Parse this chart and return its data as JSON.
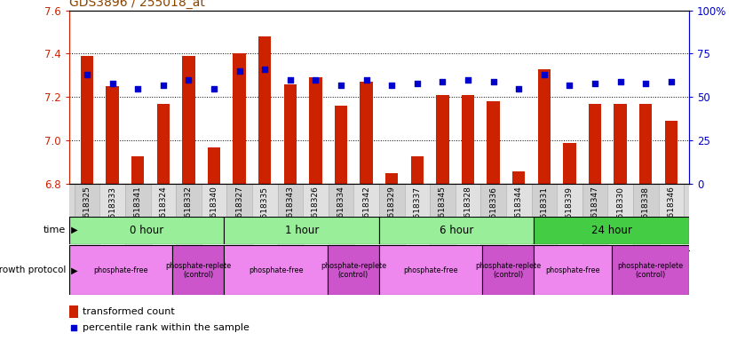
{
  "title": "GDS3896 / 255018_at",
  "samples": [
    "GSM618325",
    "GSM618333",
    "GSM618341",
    "GSM618324",
    "GSM618332",
    "GSM618340",
    "GSM618327",
    "GSM618335",
    "GSM618343",
    "GSM618326",
    "GSM618334",
    "GSM618342",
    "GSM618329",
    "GSM618337",
    "GSM618345",
    "GSM618328",
    "GSM618336",
    "GSM618344",
    "GSM618331",
    "GSM618339",
    "GSM618347",
    "GSM618330",
    "GSM618338",
    "GSM618346"
  ],
  "red_values": [
    7.39,
    7.25,
    6.93,
    7.17,
    7.39,
    6.97,
    7.4,
    7.48,
    7.26,
    7.29,
    7.16,
    7.27,
    6.85,
    6.93,
    7.21,
    7.21,
    7.18,
    6.86,
    7.33,
    6.99,
    7.17,
    7.17,
    7.17,
    7.09
  ],
  "blue_values": [
    63,
    58,
    55,
    57,
    60,
    55,
    65,
    66,
    60,
    60,
    57,
    60,
    57,
    58,
    59,
    60,
    59,
    55,
    63,
    57,
    58,
    59,
    58,
    59
  ],
  "ylim": [
    6.8,
    7.6
  ],
  "yticks": [
    6.8,
    7.0,
    7.2,
    7.4,
    7.6
  ],
  "right_yticks": [
    0,
    25,
    50,
    75,
    100
  ],
  "right_ylabels": [
    "0",
    "25",
    "50",
    "75",
    "100%"
  ],
  "bar_color": "#cc2200",
  "dot_color": "#0000cc",
  "title_color": "#884400",
  "axis_color": "#cc2200",
  "right_axis_color": "#0000cc",
  "time_groups": [
    {
      "label": "0 hour",
      "start": 0,
      "end": 6,
      "color": "#99ee99"
    },
    {
      "label": "1 hour",
      "start": 6,
      "end": 12,
      "color": "#99ee99"
    },
    {
      "label": "6 hour",
      "start": 12,
      "end": 18,
      "color": "#99ee99"
    },
    {
      "label": "24 hour",
      "start": 18,
      "end": 24,
      "color": "#44cc44"
    }
  ],
  "prot_groups": [
    {
      "label": "phosphate-free",
      "start": 0,
      "end": 4,
      "color": "#ee88ee"
    },
    {
      "label": "phosphate-replete\n(control)",
      "start": 4,
      "end": 6,
      "color": "#cc55cc"
    },
    {
      "label": "phosphate-free",
      "start": 6,
      "end": 10,
      "color": "#ee88ee"
    },
    {
      "label": "phosphate-replete\n(control)",
      "start": 10,
      "end": 12,
      "color": "#cc55cc"
    },
    {
      "label": "phosphate-free",
      "start": 12,
      "end": 16,
      "color": "#ee88ee"
    },
    {
      "label": "phosphate-replete\n(control)",
      "start": 16,
      "end": 18,
      "color": "#cc55cc"
    },
    {
      "label": "phosphate-free",
      "start": 18,
      "end": 21,
      "color": "#ee88ee"
    },
    {
      "label": "phosphate-replete\n(control)",
      "start": 21,
      "end": 24,
      "color": "#cc55cc"
    }
  ]
}
